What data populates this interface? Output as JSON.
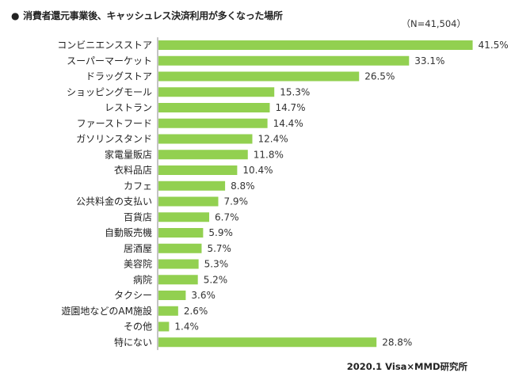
{
  "title_bullet": "●",
  "title": "消費者還元事業後、キャッシュレス決済利用が多くなった場所",
  "sample_size": "（N=41,504）",
  "source": "2020.1 Visa×MMD研究所",
  "colors": {
    "bar": "#92d050",
    "axis": "#888888"
  },
  "chart_data": {
    "type": "bar",
    "orientation": "horizontal",
    "title": "消費者還元事業後、キャッシュレス決済利用が多くなった場所",
    "xlabel": "",
    "ylabel": "",
    "xlim": [
      0,
      45
    ],
    "unit": "%",
    "grid": false,
    "categories": [
      "コンビニエンスストア",
      "スーパーマーケット",
      "ドラッグストア",
      "ショッピングモール",
      "レストラン",
      "ファーストフード",
      "ガソリンスタンド",
      "家電量販店",
      "衣料品店",
      "カフェ",
      "公共料金の支払い",
      "百貨店",
      "自動販売機",
      "居酒屋",
      "美容院",
      "病院",
      "タクシー",
      "遊園地などのAM施設",
      "その他",
      "特にない"
    ],
    "values": [
      41.5,
      33.1,
      26.5,
      15.3,
      14.7,
      14.4,
      12.4,
      11.8,
      10.4,
      8.8,
      7.9,
      6.7,
      5.9,
      5.7,
      5.3,
      5.2,
      3.6,
      2.6,
      1.4,
      28.8
    ],
    "value_labels": [
      "41.5%",
      "33.1%",
      "26.5%",
      "15.3%",
      "14.7%",
      "14.4%",
      "12.4%",
      "11.8%",
      "10.4%",
      "8.8%",
      "7.9%",
      "6.7%",
      "5.9%",
      "5.7%",
      "5.3%",
      "5.2%",
      "3.6%",
      "2.6%",
      "1.4%",
      "28.8%"
    ]
  }
}
